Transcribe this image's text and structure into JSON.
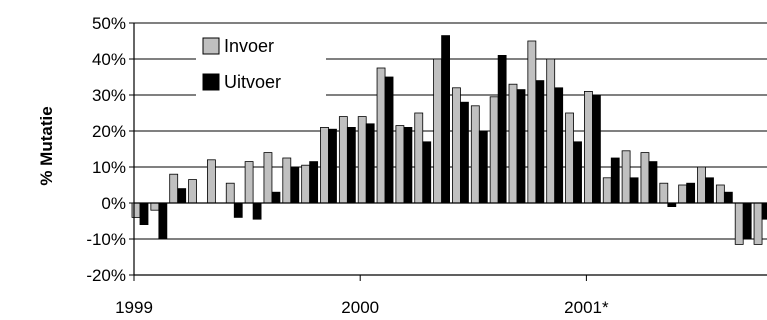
{
  "chart_data": {
    "type": "bar",
    "title": "",
    "ylabel": "% Mutatie",
    "xlabel": "",
    "ylim": [
      -20,
      50
    ],
    "yticks": [
      -20,
      -10,
      0,
      10,
      20,
      30,
      40,
      50
    ],
    "ytick_labels": [
      "-20%",
      "-10%",
      "0%",
      "10%",
      "20%",
      "30%",
      "40%",
      "50%"
    ],
    "x_labels": [
      {
        "label": "1999",
        "month_index": 0
      },
      {
        "label": "2000",
        "month_index": 12
      },
      {
        "label": "2001*",
        "month_index": 24
      }
    ],
    "grid": "horizontal",
    "legend_position": "top-left",
    "colors": {
      "Invoer": "#c0c0c0",
      "Uitvoer": "#000000"
    },
    "series": [
      {
        "name": "Invoer",
        "values": [
          -4,
          -2,
          8,
          6.5,
          12,
          5.5,
          11.5,
          14,
          12.5,
          10.5,
          21,
          24,
          24,
          37.5,
          21.5,
          25,
          40,
          32,
          27,
          29.5,
          33,
          45,
          40,
          25,
          31,
          7,
          14.5,
          14,
          5.5,
          5,
          10,
          5,
          -11.5,
          -11.5
        ]
      },
      {
        "name": "Uitvoer",
        "values": [
          -6,
          -10,
          4,
          0,
          0,
          -4,
          -4.5,
          3,
          10,
          11.5,
          20.5,
          21,
          22,
          35,
          21,
          17,
          46.5,
          28,
          20,
          41,
          31.5,
          34,
          32,
          17,
          30,
          12.5,
          7,
          11.5,
          -1,
          5.5,
          7,
          3,
          -10,
          -4.5
        ]
      }
    ]
  }
}
